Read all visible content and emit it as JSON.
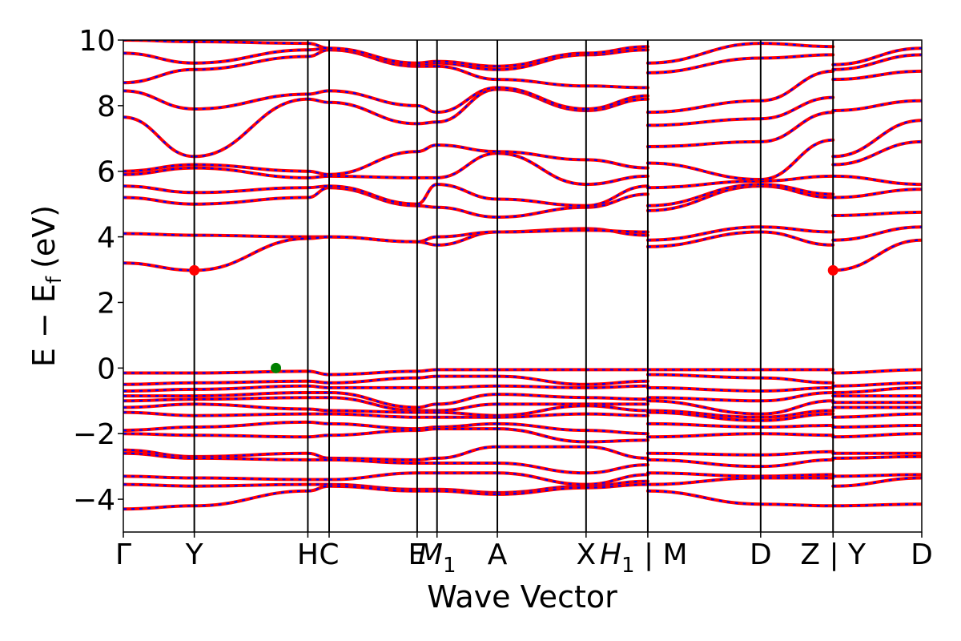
{
  "chart_data": {
    "type": "line",
    "title": "",
    "xlabel": "Wave Vector",
    "ylabel": "E − E",
    "ylabel_sub": "f",
    "ylabel_unit": "(eV)",
    "ylim": [
      -5,
      10
    ],
    "yticks": [
      {
        "value": -4,
        "label": "−4"
      },
      {
        "value": -2,
        "label": "−2"
      },
      {
        "value": 0,
        "label": "0"
      },
      {
        "value": 2,
        "label": "2"
      },
      {
        "value": 4,
        "label": "4"
      },
      {
        "value": 6,
        "label": "6"
      },
      {
        "value": 8,
        "label": "8"
      },
      {
        "value": 10,
        "label": "10"
      }
    ],
    "xlim": [
      0,
      11.25
    ],
    "kpoints": [
      {
        "x": 0.0,
        "label": "Γ"
      },
      {
        "x": 1.0,
        "label": "Y"
      },
      {
        "x": 2.6,
        "label": "H"
      },
      {
        "x": 2.9,
        "label": "C"
      },
      {
        "x": 4.14,
        "label": "E"
      },
      {
        "x": 4.42,
        "label": "M",
        "sub": "1"
      },
      {
        "x": 5.27,
        "label": "A"
      },
      {
        "x": 6.52,
        "label": "X"
      },
      {
        "x": 7.39,
        "label": "H",
        "sub": "1",
        "suffix": " | M"
      },
      {
        "x": 8.98,
        "label": "D"
      },
      {
        "x": 10.0,
        "label": "Z | Y"
      },
      {
        "x": 11.25,
        "label": "D"
      }
    ],
    "band_colors": {
      "primary": "#ff0000",
      "overlay": "#0000ff"
    },
    "segments": [
      {
        "x0": 0.0,
        "x1": 1.0,
        "start": [
          4.1,
          3.2,
          5.2,
          5.55,
          5.9,
          6.0,
          7.65,
          8.45,
          8.7,
          9.6,
          10.0,
          -0.15,
          -0.5,
          -0.7,
          -0.85,
          -1.0,
          -1.2,
          -1.35,
          -1.9,
          -2.0,
          -2.5,
          -2.6,
          -3.3,
          -3.55,
          -4.3
        ],
        "end": [
          4.05,
          2.98,
          5.0,
          5.35,
          6.1,
          6.2,
          6.45,
          7.9,
          9.1,
          9.3,
          9.95,
          -0.15,
          -0.45,
          -0.65,
          -0.85,
          -0.95,
          -1.1,
          -1.45,
          -1.8,
          -2.05,
          -2.7,
          -2.75,
          -3.35,
          -3.6,
          -4.2
        ]
      },
      {
        "x0": 1.0,
        "x1": 2.6,
        "start": [
          4.05,
          2.98,
          5.0,
          5.35,
          6.1,
          6.2,
          6.45,
          7.9,
          9.1,
          9.3,
          9.95,
          -0.15,
          -0.45,
          -0.65,
          -0.85,
          -0.95,
          -1.1,
          -1.45,
          -1.8,
          -2.05,
          -2.7,
          -2.75,
          -3.35,
          -3.6,
          -4.2
        ],
        "end": [
          4.0,
          3.95,
          5.2,
          5.5,
          5.8,
          6.0,
          8.2,
          8.35,
          9.5,
          9.7,
          9.9,
          -0.1,
          -0.4,
          -0.55,
          -0.75,
          -0.9,
          -1.25,
          -1.4,
          -1.65,
          -2.1,
          -2.6,
          -2.8,
          -3.4,
          -3.55,
          -3.75
        ]
      },
      {
        "x0": 2.6,
        "x1": 2.9,
        "start": [
          4.0,
          3.95,
          5.2,
          5.5,
          5.8,
          6.0,
          8.2,
          8.35,
          9.5,
          9.7,
          9.9,
          -0.1,
          -0.4,
          -0.55,
          -0.75,
          -0.9,
          -1.25,
          -1.4,
          -1.65,
          -2.1,
          -2.6,
          -2.8,
          -3.4,
          -3.55,
          -3.75
        ],
        "end": [
          4.0,
          4.0,
          5.5,
          5.55,
          5.85,
          5.9,
          8.1,
          8.45,
          9.7,
          9.75,
          9.75,
          -0.2,
          -0.45,
          -0.6,
          -0.75,
          -0.9,
          -1.3,
          -1.4,
          -1.7,
          -2.05,
          -2.75,
          -2.8,
          -3.4,
          -3.55,
          -3.6
        ]
      },
      {
        "x0": 2.9,
        "x1": 4.14,
        "start": [
          4.0,
          4.0,
          5.5,
          5.55,
          5.85,
          5.9,
          8.1,
          8.45,
          9.7,
          9.75,
          9.75,
          -0.2,
          -0.45,
          -0.6,
          -0.75,
          -0.9,
          -1.3,
          -1.4,
          -1.7,
          -2.05,
          -2.75,
          -2.8,
          -3.4,
          -3.55,
          -3.6
        ],
        "end": [
          3.85,
          3.85,
          4.95,
          5.0,
          5.8,
          6.6,
          7.45,
          8.0,
          9.2,
          9.25,
          9.3,
          -0.1,
          -0.3,
          -0.6,
          -1.2,
          -1.3,
          -1.35,
          -1.5,
          -1.85,
          -1.9,
          -2.8,
          -2.9,
          -3.2,
          -3.7,
          -3.75
        ]
      },
      {
        "x0": 4.14,
        "x1": 4.42,
        "start": [
          3.85,
          3.85,
          4.95,
          5.0,
          5.8,
          6.6,
          7.45,
          8.0,
          9.2,
          9.25,
          9.3,
          -0.1,
          -0.3,
          -0.6,
          -1.2,
          -1.3,
          -1.35,
          -1.5,
          -1.85,
          -1.9,
          -2.8,
          -2.9,
          -3.2,
          -3.7,
          -3.75
        ],
        "end": [
          3.75,
          4.0,
          4.9,
          5.6,
          5.8,
          6.8,
          7.5,
          7.8,
          9.2,
          9.3,
          9.35,
          -0.05,
          -0.25,
          -0.6,
          -1.1,
          -1.3,
          -1.35,
          -1.5,
          -1.8,
          -1.85,
          -2.75,
          -2.9,
          -3.2,
          -3.7,
          -3.75
        ]
      },
      {
        "x0": 4.42,
        "x1": 5.27,
        "start": [
          3.75,
          4.0,
          4.9,
          5.6,
          5.8,
          6.8,
          7.5,
          7.8,
          9.2,
          9.3,
          9.35,
          -0.05,
          -0.25,
          -0.6,
          -1.1,
          -1.3,
          -1.35,
          -1.5,
          -1.8,
          -1.85,
          -2.75,
          -2.9,
          -3.2,
          -3.7,
          -3.75
        ],
        "end": [
          4.15,
          4.15,
          4.6,
          5.15,
          6.55,
          6.6,
          8.5,
          8.55,
          8.8,
          9.1,
          9.2,
          -0.05,
          -0.25,
          -0.55,
          -0.8,
          -1.1,
          -1.45,
          -1.5,
          -1.7,
          -1.85,
          -2.4,
          -2.9,
          -3.2,
          -3.8,
          -3.85
        ]
      },
      {
        "x0": 5.27,
        "x1": 6.52,
        "start": [
          4.15,
          4.15,
          4.6,
          5.15,
          6.55,
          6.6,
          8.5,
          8.55,
          8.8,
          9.1,
          9.2,
          -0.05,
          -0.25,
          -0.55,
          -0.8,
          -1.1,
          -1.45,
          -1.5,
          -1.7,
          -1.85,
          -2.4,
          -2.9,
          -3.2,
          -3.8,
          -3.85
        ],
        "end": [
          4.25,
          4.2,
          4.9,
          4.95,
          5.6,
          6.35,
          7.85,
          7.9,
          8.6,
          9.55,
          9.6,
          -0.05,
          -0.5,
          -0.6,
          -0.9,
          -1.1,
          -1.15,
          -1.4,
          -1.9,
          -2.25,
          -2.4,
          -3.2,
          -3.55,
          -3.6,
          -3.65
        ]
      },
      {
        "x0": 6.52,
        "x1": 7.39,
        "start": [
          4.25,
          4.2,
          4.9,
          4.95,
          5.6,
          6.35,
          7.85,
          7.9,
          8.6,
          9.55,
          9.6,
          -0.05,
          -0.5,
          -0.6,
          -0.9,
          -1.1,
          -1.15,
          -1.4,
          -1.9,
          -2.25,
          -2.4,
          -3.2,
          -3.55,
          -3.6,
          -3.65
        ],
        "end": [
          4.05,
          4.15,
          5.3,
          5.55,
          5.85,
          6.1,
          8.2,
          8.3,
          8.55,
          9.7,
          9.8,
          -0.05,
          -0.4,
          -0.55,
          -0.95,
          -1.1,
          -1.3,
          -1.45,
          -2.0,
          -2.2,
          -2.75,
          -2.95,
          -3.25,
          -3.45,
          -3.55
        ]
      },
      {
        "x0": 7.39,
        "x1": 8.98,
        "start": [
          3.7,
          3.9,
          4.8,
          4.95,
          5.5,
          6.25,
          6.75,
          7.4,
          7.8,
          9.0,
          9.3,
          -0.05,
          -0.2,
          -0.6,
          -0.9,
          -1.0,
          -1.3,
          -1.35,
          -1.7,
          -2.1,
          -2.6,
          -2.8,
          -3.2,
          -3.55,
          -3.75
        ],
        "end": [
          4.15,
          4.3,
          5.55,
          5.6,
          5.7,
          5.75,
          6.9,
          7.6,
          8.15,
          9.45,
          9.9,
          -0.05,
          -0.3,
          -0.7,
          -1.0,
          -1.4,
          -1.5,
          -1.6,
          -1.8,
          -2.0,
          -2.65,
          -3.0,
          -3.3,
          -3.35,
          -4.15
        ]
      },
      {
        "x0": 8.98,
        "x1": 10.0,
        "start": [
          4.15,
          4.3,
          5.55,
          5.6,
          5.7,
          5.75,
          6.9,
          7.6,
          8.15,
          9.45,
          9.9,
          -0.05,
          -0.3,
          -0.7,
          -1.0,
          -1.4,
          -1.5,
          -1.6,
          -1.8,
          -2.0,
          -2.65,
          -3.0,
          -3.3,
          -3.35,
          -4.15
        ],
        "end": [
          3.75,
          4.15,
          5.2,
          5.3,
          5.85,
          6.95,
          7.8,
          8.25,
          9.05,
          9.55,
          9.8,
          -0.05,
          -0.45,
          -0.6,
          -0.75,
          -1.0,
          -1.3,
          -1.4,
          -1.75,
          -2.05,
          -2.55,
          -2.8,
          -3.25,
          -3.35,
          -4.2
        ]
      },
      {
        "x0": 10.0,
        "x1": 11.25,
        "start": [
          2.98,
          3.9,
          4.65,
          5.2,
          5.85,
          6.2,
          6.45,
          7.85,
          8.8,
          9.1,
          9.25,
          -0.15,
          -0.55,
          -0.75,
          -0.85,
          -1.05,
          -1.2,
          -1.5,
          -1.8,
          -2.1,
          -2.6,
          -2.75,
          -3.3,
          -3.6,
          -4.2
        ],
        "end": [
          3.9,
          4.3,
          4.75,
          5.45,
          5.6,
          6.9,
          7.55,
          8.15,
          9.05,
          9.55,
          9.75,
          -0.05,
          -0.45,
          -0.6,
          -0.85,
          -1.05,
          -1.2,
          -1.4,
          -1.75,
          -2.0,
          -2.6,
          -2.7,
          -3.25,
          -3.35,
          -4.15
        ]
      }
    ],
    "markers": [
      {
        "name": "cbm-marker-y",
        "x": 1.0,
        "y": 2.98,
        "color": "#ff0000"
      },
      {
        "name": "vbm-marker",
        "x": 2.15,
        "y": 0.0,
        "color": "#008000"
      },
      {
        "name": "cbm-marker-zy",
        "x": 10.0,
        "y": 2.98,
        "color": "#ff0000"
      }
    ]
  }
}
